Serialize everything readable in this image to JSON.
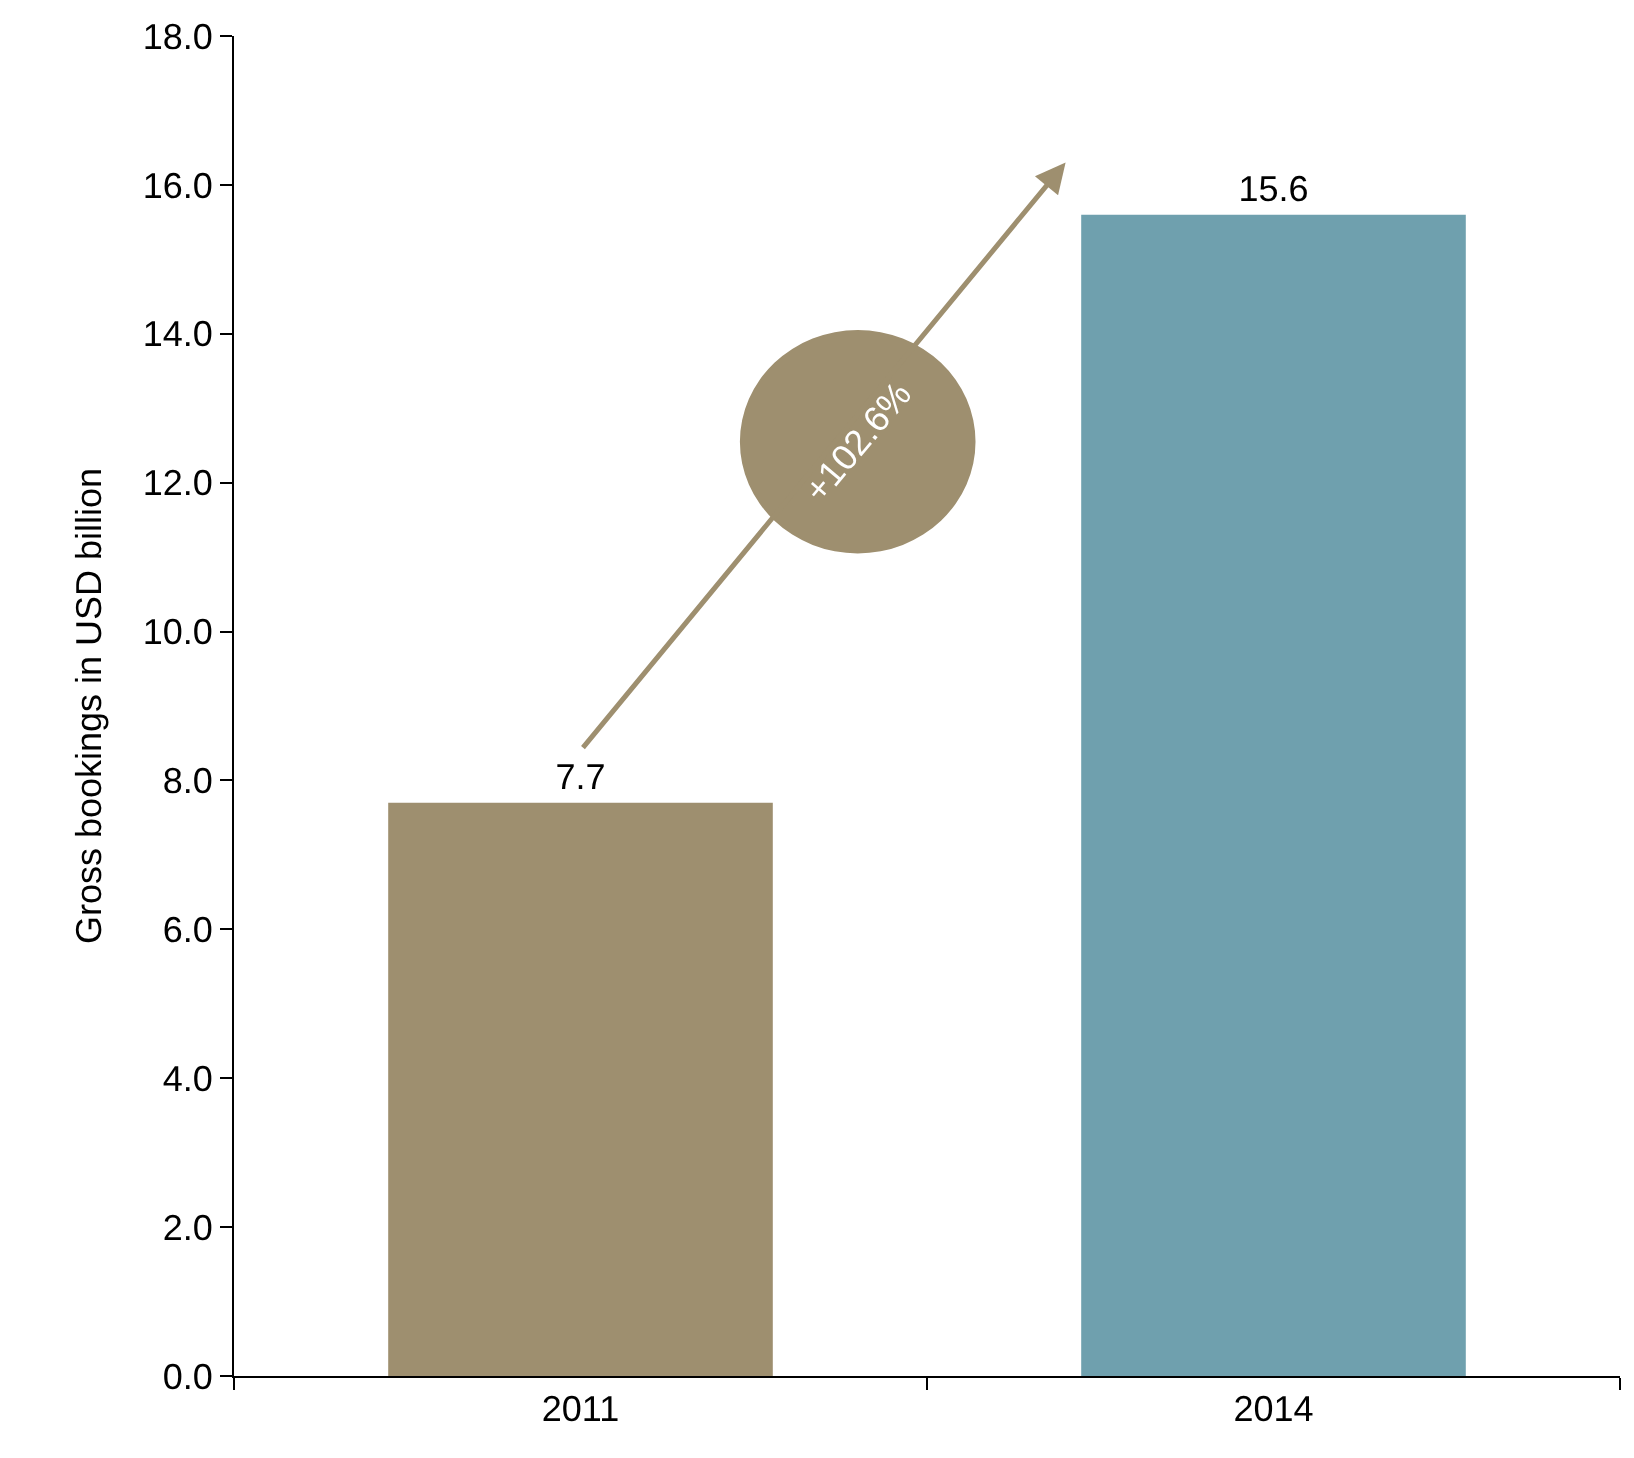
{
  "chart_data": {
    "type": "bar",
    "ylabel": "Gross bookings in USD billion",
    "categories": [
      "2011",
      "2014"
    ],
    "values": [
      7.7,
      15.6
    ],
    "colors": [
      "#9e8f6f",
      "#6fa0ae"
    ],
    "ylim": [
      0,
      18
    ],
    "yticks": [
      {
        "value": 0,
        "label": "0.0"
      },
      {
        "value": 2,
        "label": "2.0"
      },
      {
        "value": 4,
        "label": "4.0"
      },
      {
        "value": 6,
        "label": "6.0"
      },
      {
        "value": 8,
        "label": "8.0"
      },
      {
        "value": 10,
        "label": "10.0"
      },
      {
        "value": 12,
        "label": "12.0"
      },
      {
        "value": 14,
        "label": "14.0"
      },
      {
        "value": 16,
        "label": "16.0"
      },
      {
        "value": 18,
        "label": "18.0"
      }
    ],
    "data_labels": true,
    "annotations": [
      "+102.6%"
    ]
  }
}
